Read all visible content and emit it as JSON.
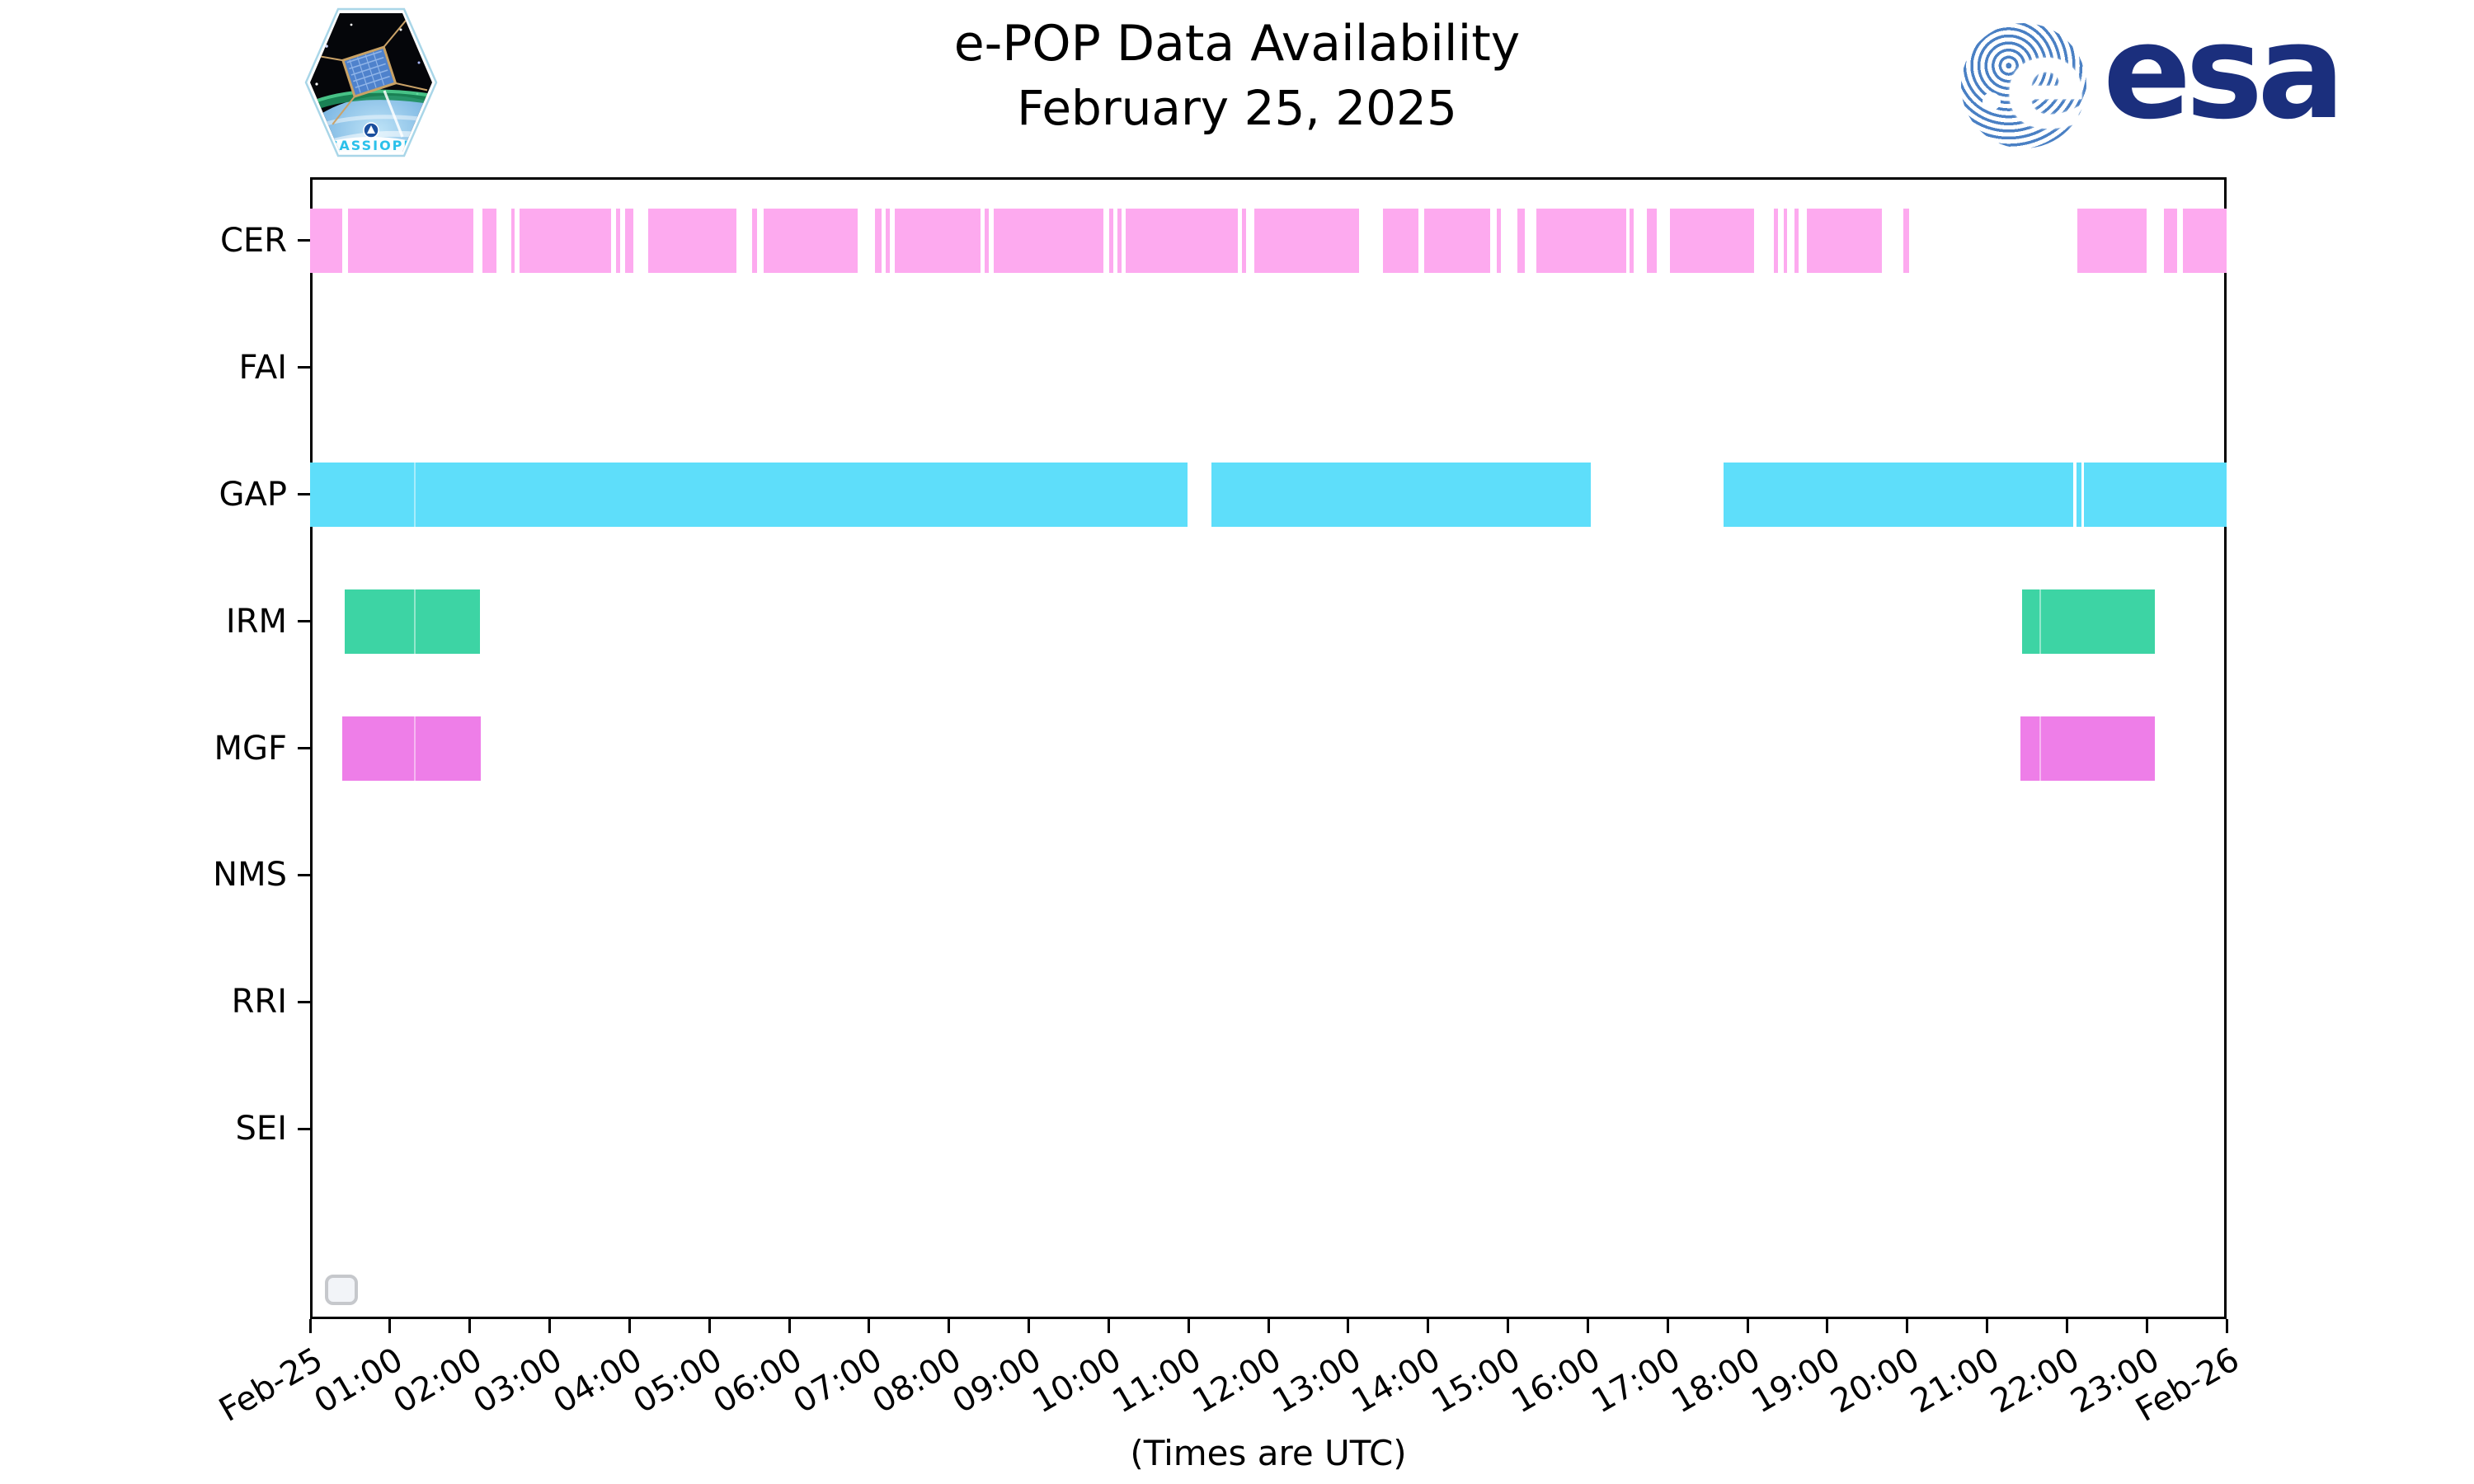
{
  "header": {
    "title": "e-POP Data Availability",
    "subtitle": "February 25, 2025",
    "esa_wordmark": "esa",
    "esa_colors": {
      "navy": "#1b2f7d",
      "stripe_blue": "#4a80c4"
    },
    "patch_text": "CASSIOPE"
  },
  "chart_data": {
    "type": "bar",
    "subtype": "broken-horizontal-bar-availability-timeline",
    "title": "e-POP Data Availability",
    "subtitle": "February 25, 2025",
    "xlabel": "(Times are UTC)",
    "x_axis": {
      "range_hours": [
        0,
        24
      ],
      "tick_interval_hours": 1,
      "tick_labels": [
        "Feb-25",
        "01:00",
        "02:00",
        "03:00",
        "04:00",
        "05:00",
        "06:00",
        "07:00",
        "08:00",
        "09:00",
        "10:00",
        "11:00",
        "12:00",
        "13:00",
        "14:00",
        "15:00",
        "16:00",
        "17:00",
        "18:00",
        "19:00",
        "20:00",
        "21:00",
        "22:00",
        "23:00",
        "Feb-26"
      ],
      "tick_label_rotation_deg": 30
    },
    "y_axis": {
      "categories": [
        "CER",
        "FAI",
        "GAP",
        "IRM",
        "MGF",
        "NMS",
        "RRI",
        "SEI"
      ],
      "row_slots": 9,
      "grid": false,
      "legend": "none"
    },
    "rows": [
      {
        "label": "CER",
        "color": "#FDAAEF",
        "segments": [
          [
            0,
            0.4
          ],
          [
            0.48,
            2.04
          ],
          [
            2.16,
            2.33
          ],
          [
            2.52,
            2.56
          ],
          [
            2.62,
            3.77
          ],
          [
            3.83,
            3.88
          ],
          [
            3.95,
            4.05
          ],
          [
            4.23,
            5.34
          ],
          [
            5.54,
            5.6
          ],
          [
            5.68,
            6.86
          ],
          [
            7.07,
            7.16
          ],
          [
            7.21,
            7.26
          ],
          [
            7.32,
            8.4
          ],
          [
            8.45,
            8.5
          ],
          [
            8.56,
            9.93
          ],
          [
            10.01,
            10.06
          ],
          [
            10.11,
            10.16
          ],
          [
            10.21,
            11.62
          ],
          [
            11.67,
            11.72
          ],
          [
            11.82,
            13.14
          ],
          [
            13.44,
            13.88
          ],
          [
            13.95,
            14.78
          ],
          [
            14.86,
            14.91
          ],
          [
            15.12,
            15.21
          ],
          [
            15.36,
            16.48
          ],
          [
            16.52,
            16.58
          ],
          [
            16.74,
            16.86
          ],
          [
            17.03,
            18.08
          ],
          [
            18.33,
            18.38
          ],
          [
            18.45,
            18.5
          ],
          [
            18.59,
            18.64
          ],
          [
            18.74,
            19.68
          ],
          [
            19.95,
            20.02
          ],
          [
            22.13,
            23.0
          ],
          [
            23.21,
            23.38
          ],
          [
            23.45,
            24
          ]
        ]
      },
      {
        "label": "FAI",
        "color": null,
        "segments": []
      },
      {
        "label": "GAP",
        "color": "#5EDEFA",
        "segments": [
          [
            0,
            1.31
          ],
          [
            1.31,
            10.99
          ],
          [
            11.29,
            16.04
          ],
          [
            17.7,
            22.08
          ],
          [
            22.12,
            22.18
          ],
          [
            22.21,
            24
          ]
        ]
      },
      {
        "label": "IRM",
        "color": "#3DD4A4",
        "segments": [
          [
            0.43,
            1.31
          ],
          [
            1.31,
            2.13
          ],
          [
            21.44,
            21.67
          ],
          [
            21.67,
            23.1
          ]
        ]
      },
      {
        "label": "MGF",
        "color": "#EE7EE8",
        "segments": [
          [
            0.4,
            1.31
          ],
          [
            1.31,
            2.14
          ],
          [
            21.42,
            21.67
          ],
          [
            21.67,
            23.1
          ]
        ]
      },
      {
        "label": "NMS",
        "color": null,
        "segments": []
      },
      {
        "label": "RRI",
        "color": null,
        "segments": []
      },
      {
        "label": "SEI",
        "color": null,
        "segments": []
      }
    ]
  },
  "widgets": {
    "corner_button_label": ""
  }
}
